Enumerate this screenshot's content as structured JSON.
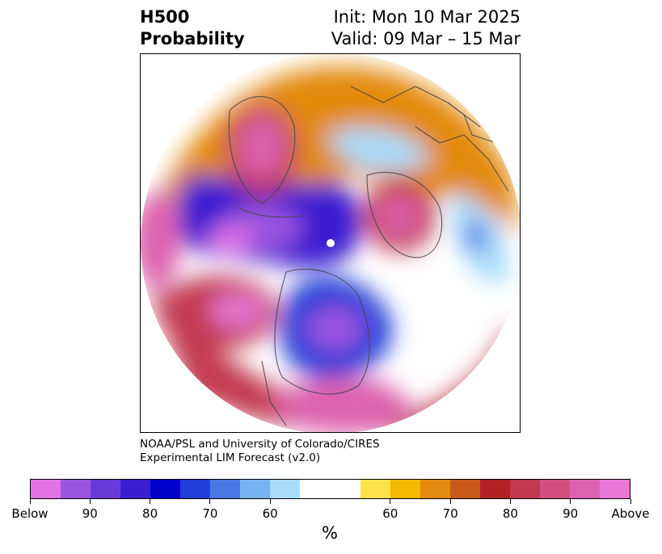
{
  "title": {
    "left_line1": "H500",
    "left_line2": "Probability",
    "right_line1": "Init: Mon 10 Mar 2025",
    "right_line2": "Valid: 09 Mar – 15 Mar"
  },
  "credit": {
    "line1": "NOAA/PSL and University of Colorado/CIRES",
    "line2": "Experimental LIM Forecast (v2.0)"
  },
  "colorbar": {
    "colors": [
      "#e173e6",
      "#9b55df",
      "#6a3ad9",
      "#3a1fd0",
      "#0000cc",
      "#2240d9",
      "#4a77e6",
      "#74b4f2",
      "#a9dcf9",
      "#ffffff",
      "#ffe14a",
      "#f5b800",
      "#e38a10",
      "#c85a1c",
      "#b32222",
      "#c23a50",
      "#d15080",
      "#dd62ae",
      "#e878d6"
    ],
    "labels": [
      "Below",
      "90",
      "80",
      "70",
      "60",
      "60",
      "70",
      "80",
      "90",
      "Above"
    ],
    "unit": "%"
  },
  "map": {
    "projection": "north-polar-stereographic",
    "anomaly_centers": [
      {
        "sign": "above",
        "region": "Greenland / Baffin"
      },
      {
        "sign": "above",
        "region": "Scandinavia / NW Russia"
      },
      {
        "sign": "below",
        "region": "Arctic Ocean / Siberia"
      },
      {
        "sign": "below",
        "region": "North America"
      },
      {
        "sign": "above",
        "region": "North Pacific"
      },
      {
        "sign": "above",
        "region": "Western Pacific"
      },
      {
        "sign": "below",
        "region": "Central Asia"
      }
    ]
  }
}
